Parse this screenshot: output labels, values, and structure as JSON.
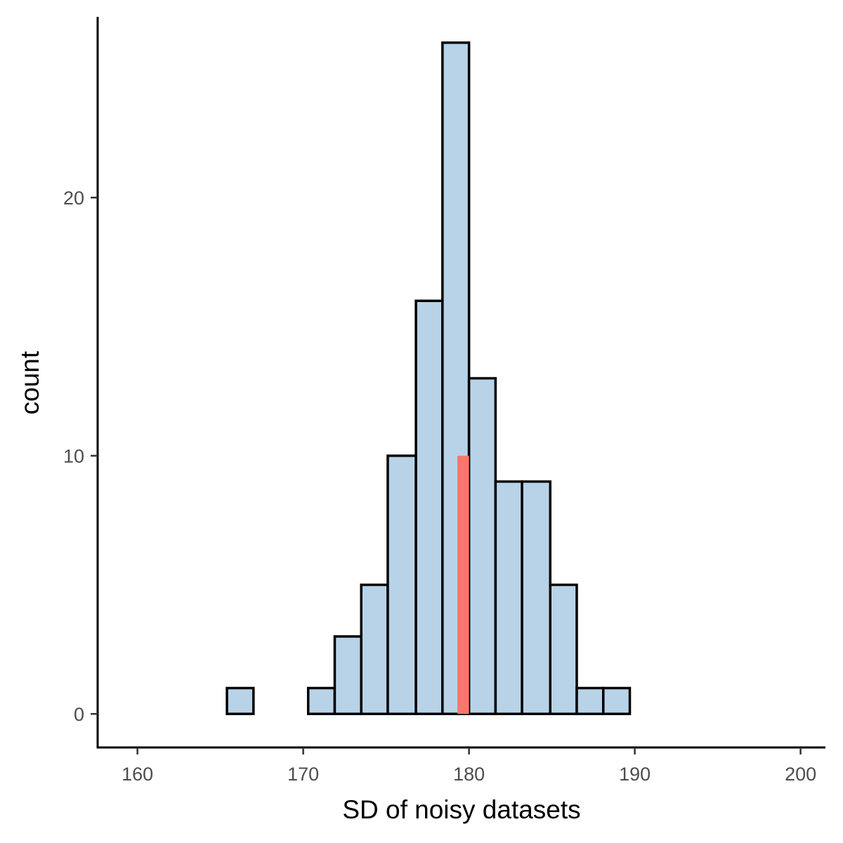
{
  "chart_data": {
    "type": "bar",
    "xlabel": "SD of noisy datasets",
    "ylabel": "count",
    "xlim": [
      157.6,
      201.5
    ],
    "ylim": [
      -1.3,
      27
    ],
    "x_ticks": [
      160,
      170,
      180,
      190,
      200
    ],
    "y_ticks": [
      0,
      10,
      20
    ],
    "grid": false,
    "legend": "none",
    "bins": [
      {
        "x0": 165.4,
        "x1": 167.0,
        "count": 1
      },
      {
        "x0": 167.0,
        "x1": 168.6,
        "count": 0
      },
      {
        "x0": 168.6,
        "x1": 170.3,
        "count": 0
      },
      {
        "x0": 170.3,
        "x1": 171.9,
        "count": 1
      },
      {
        "x0": 171.9,
        "x1": 173.5,
        "count": 3
      },
      {
        "x0": 173.5,
        "x1": 175.1,
        "count": 5
      },
      {
        "x0": 175.1,
        "x1": 176.8,
        "count": 10
      },
      {
        "x0": 176.8,
        "x1": 178.4,
        "count": 16
      },
      {
        "x0": 178.4,
        "x1": 180.0,
        "count": 26
      },
      {
        "x0": 180.0,
        "x1": 181.6,
        "count": 13
      },
      {
        "x0": 181.6,
        "x1": 183.2,
        "count": 9
      },
      {
        "x0": 183.2,
        "x1": 184.9,
        "count": 9
      },
      {
        "x0": 184.9,
        "x1": 186.5,
        "count": 5
      },
      {
        "x0": 186.5,
        "x1": 188.1,
        "count": 1
      },
      {
        "x0": 188.1,
        "x1": 189.7,
        "count": 1
      }
    ],
    "highlight": {
      "x0": 179.3,
      "x1": 180.0,
      "value": 10,
      "color": "#f8766d"
    },
    "colors": {
      "bar_fill": "#b8d3e8",
      "bar_stroke": "#000000"
    }
  }
}
